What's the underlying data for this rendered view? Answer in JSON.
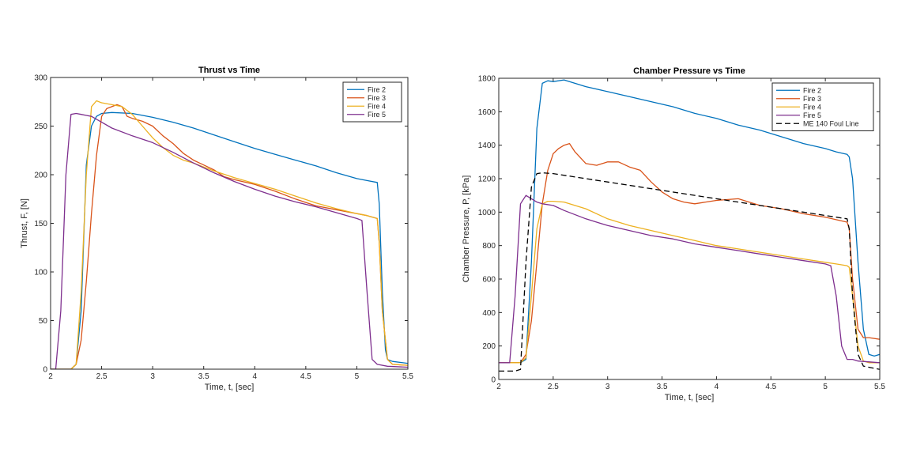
{
  "chart_data": [
    {
      "type": "line",
      "title": "Thrust vs Time",
      "xlabel": "Time, t, [sec]",
      "ylabel": "Thrust, F, [N]",
      "xlim": [
        2,
        5.5
      ],
      "ylim": [
        0,
        300
      ],
      "xticks": [
        2,
        2.5,
        3,
        3.5,
        4,
        4.5,
        5,
        5.5
      ],
      "xtick_labels": [
        "2",
        "2.5",
        "3",
        "3.5",
        "4",
        "4.5",
        "5",
        "5.5"
      ],
      "yticks": [
        0,
        50,
        100,
        150,
        200,
        250,
        300
      ],
      "ytick_labels": [
        "0",
        "50",
        "100",
        "150",
        "200",
        "250",
        "300"
      ],
      "legend_position": "top-right",
      "series": [
        {
          "name": "Fire 2",
          "color": "#0072bd",
          "dash": "",
          "x": [
            2.0,
            2.2,
            2.25,
            2.3,
            2.35,
            2.4,
            2.45,
            2.5,
            2.6,
            2.8,
            3.0,
            3.2,
            3.4,
            3.6,
            3.8,
            4.0,
            4.2,
            4.4,
            4.6,
            4.8,
            5.0,
            5.1,
            5.2,
            5.22,
            5.25,
            5.28,
            5.3,
            5.35,
            5.5
          ],
          "y": [
            0,
            0,
            5,
            60,
            210,
            250,
            260,
            263,
            264,
            263,
            259,
            254,
            248,
            241,
            234,
            227,
            221,
            215,
            209,
            202,
            196,
            194,
            192,
            170,
            80,
            20,
            10,
            8,
            6
          ]
        },
        {
          "name": "Fire 3",
          "color": "#d95319",
          "dash": "",
          "x": [
            2.0,
            2.2,
            2.25,
            2.3,
            2.35,
            2.4,
            2.45,
            2.5,
            2.55,
            2.6,
            2.65,
            2.7,
            2.75,
            2.8,
            2.9,
            3.0,
            3.1,
            3.2,
            3.3,
            3.4,
            3.5,
            3.6,
            3.7,
            3.8,
            4.0,
            4.2,
            4.4,
            4.6,
            4.8,
            5.0,
            5.1,
            5.2,
            5.22,
            5.25,
            5.3,
            5.35,
            5.5
          ],
          "y": [
            0,
            0,
            5,
            30,
            90,
            160,
            220,
            260,
            268,
            270,
            272,
            270,
            260,
            258,
            255,
            250,
            240,
            232,
            222,
            215,
            210,
            205,
            198,
            195,
            190,
            183,
            175,
            168,
            164,
            160,
            158,
            155,
            130,
            60,
            10,
            5,
            4
          ]
        },
        {
          "name": "Fire 4",
          "color": "#edb120",
          "dash": "",
          "x": [
            2.0,
            2.2,
            2.25,
            2.3,
            2.35,
            2.4,
            2.45,
            2.5,
            2.6,
            2.7,
            2.8,
            2.9,
            3.0,
            3.1,
            3.2,
            3.3,
            3.4,
            3.5,
            3.6,
            3.8,
            4.0,
            4.2,
            4.4,
            4.6,
            4.8,
            5.0,
            5.1,
            5.2,
            5.22,
            5.25,
            5.3,
            5.35,
            5.5
          ],
          "y": [
            0,
            0,
            5,
            80,
            200,
            270,
            276,
            274,
            272,
            270,
            262,
            250,
            238,
            228,
            220,
            215,
            212,
            208,
            204,
            197,
            191,
            185,
            178,
            171,
            165,
            160,
            158,
            155,
            130,
            60,
            10,
            5,
            4
          ]
        },
        {
          "name": "Fire 5",
          "color": "#7e2f8e",
          "dash": "",
          "x": [
            2.0,
            2.05,
            2.1,
            2.15,
            2.2,
            2.25,
            2.3,
            2.35,
            2.4,
            2.5,
            2.6,
            2.8,
            3.0,
            3.2,
            3.4,
            3.6,
            3.8,
            4.0,
            4.2,
            4.4,
            4.6,
            4.8,
            5.0,
            5.05,
            5.1,
            5.15,
            5.2,
            5.3,
            5.5
          ],
          "y": [
            0,
            0,
            60,
            200,
            262,
            263,
            262,
            261,
            260,
            254,
            248,
            240,
            233,
            223,
            212,
            202,
            193,
            185,
            178,
            172,
            167,
            161,
            155,
            153,
            80,
            10,
            5,
            3,
            2
          ]
        }
      ]
    },
    {
      "type": "line",
      "title": "Chamber Pressure vs Time",
      "xlabel": "Time, t, [sec]",
      "ylabel": "Chamber Pressure, P, [kPa]",
      "xlim": [
        2,
        5.5
      ],
      "ylim": [
        0,
        1800
      ],
      "xticks": [
        2,
        2.5,
        3,
        3.5,
        4,
        4.5,
        5,
        5.5
      ],
      "xtick_labels": [
        "2",
        "2.5",
        "3",
        "3.5",
        "4",
        "4.5",
        "5",
        "5.5"
      ],
      "yticks": [
        0,
        200,
        400,
        600,
        800,
        1000,
        1200,
        1400,
        1600,
        1800
      ],
      "ytick_labels": [
        "0",
        "200",
        "400",
        "600",
        "800",
        "1000",
        "1200",
        "1400",
        "1600",
        "1800"
      ],
      "legend_position": "top-right",
      "series": [
        {
          "name": "Fire 2",
          "color": "#0072bd",
          "dash": "",
          "x": [
            2.0,
            2.2,
            2.25,
            2.3,
            2.35,
            2.4,
            2.45,
            2.5,
            2.6,
            2.8,
            3.0,
            3.2,
            3.4,
            3.6,
            3.8,
            4.0,
            4.2,
            4.4,
            4.6,
            4.8,
            5.0,
            5.1,
            5.2,
            5.22,
            5.25,
            5.3,
            5.35,
            5.4,
            5.45,
            5.5
          ],
          "y": [
            100,
            100,
            120,
            700,
            1500,
            1770,
            1785,
            1780,
            1790,
            1750,
            1720,
            1690,
            1660,
            1630,
            1590,
            1560,
            1520,
            1490,
            1450,
            1410,
            1380,
            1360,
            1345,
            1330,
            1200,
            700,
            300,
            150,
            140,
            150
          ]
        },
        {
          "name": "Fire 3",
          "color": "#d95319",
          "dash": "",
          "x": [
            2.0,
            2.2,
            2.25,
            2.3,
            2.35,
            2.4,
            2.45,
            2.5,
            2.55,
            2.6,
            2.65,
            2.7,
            2.8,
            2.9,
            3.0,
            3.1,
            3.2,
            3.3,
            3.4,
            3.5,
            3.6,
            3.7,
            3.8,
            3.9,
            4.0,
            4.2,
            4.4,
            4.6,
            4.8,
            5.0,
            5.2,
            5.22,
            5.25,
            5.3,
            5.35,
            5.4,
            5.5
          ],
          "y": [
            100,
            100,
            150,
            350,
            700,
            1050,
            1250,
            1350,
            1380,
            1400,
            1410,
            1360,
            1290,
            1280,
            1300,
            1300,
            1270,
            1250,
            1180,
            1120,
            1080,
            1060,
            1050,
            1060,
            1070,
            1080,
            1040,
            1020,
            990,
            970,
            940,
            900,
            600,
            300,
            250,
            250,
            240
          ]
        },
        {
          "name": "Fire 4",
          "color": "#edb120",
          "dash": "",
          "x": [
            2.0,
            2.2,
            2.25,
            2.3,
            2.35,
            2.4,
            2.45,
            2.5,
            2.6,
            2.8,
            3.0,
            3.2,
            3.4,
            3.6,
            3.8,
            4.0,
            4.2,
            4.4,
            4.6,
            4.8,
            5.0,
            5.1,
            5.2,
            5.22,
            5.25,
            5.3,
            5.35,
            5.4,
            5.5
          ],
          "y": [
            100,
            100,
            130,
            500,
            900,
            1050,
            1065,
            1065,
            1060,
            1020,
            960,
            920,
            890,
            860,
            830,
            800,
            780,
            760,
            740,
            720,
            700,
            690,
            680,
            670,
            500,
            200,
            110,
            100,
            100
          ]
        },
        {
          "name": "Fire 5",
          "color": "#7e2f8e",
          "dash": "",
          "x": [
            2.0,
            2.1,
            2.15,
            2.2,
            2.25,
            2.3,
            2.35,
            2.4,
            2.5,
            2.6,
            2.8,
            3.0,
            3.2,
            3.4,
            3.6,
            3.8,
            4.0,
            4.2,
            4.4,
            4.6,
            4.8,
            5.0,
            5.05,
            5.1,
            5.15,
            5.2,
            5.25,
            5.3,
            5.5
          ],
          "y": [
            100,
            100,
            500,
            1050,
            1100,
            1080,
            1060,
            1050,
            1040,
            1010,
            960,
            920,
            890,
            860,
            840,
            810,
            790,
            770,
            750,
            730,
            710,
            690,
            680,
            500,
            200,
            120,
            120,
            110,
            100
          ]
        },
        {
          "name": "ME 140 Foul Line",
          "color": "#000000",
          "dash": "7,4",
          "x": [
            2.0,
            2.15,
            2.2,
            2.25,
            2.3,
            2.35,
            2.4,
            2.5,
            3.0,
            3.5,
            4.0,
            4.5,
            5.0,
            5.1,
            5.2,
            5.22,
            5.25,
            5.3,
            5.35,
            5.5
          ],
          "y": [
            50,
            50,
            60,
            700,
            1150,
            1230,
            1235,
            1230,
            1180,
            1130,
            1080,
            1030,
            980,
            970,
            960,
            900,
            500,
            150,
            80,
            60
          ]
        }
      ]
    }
  ]
}
